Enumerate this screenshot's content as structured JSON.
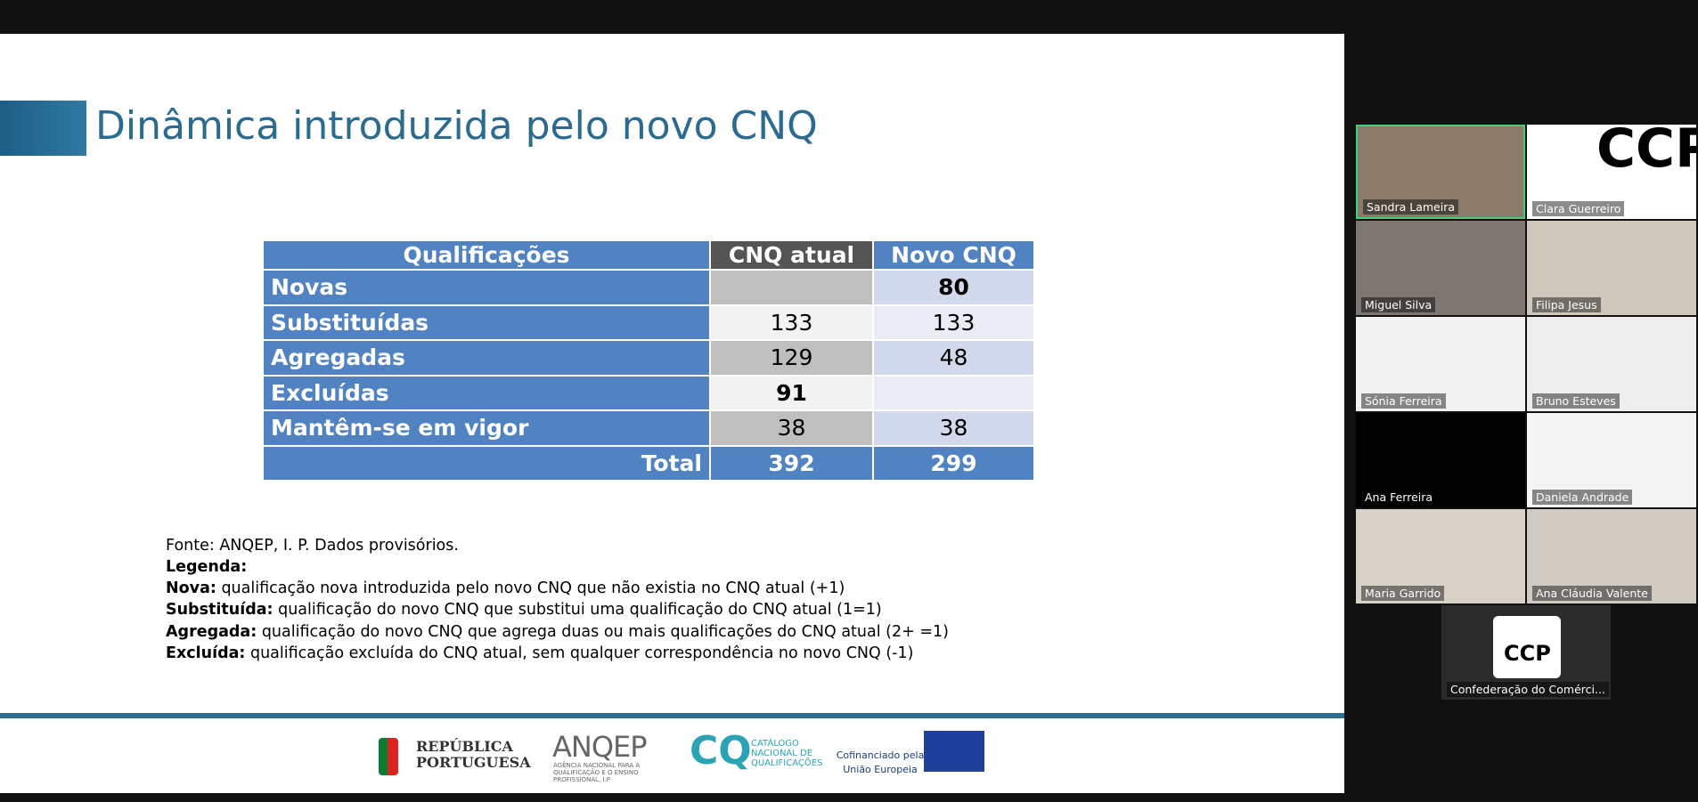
{
  "slide": {
    "title": "Dinâmica introduzida pelo novo CNQ",
    "table": {
      "header": [
        "Qualificações",
        "CNQ atual",
        "Novo CNQ"
      ],
      "rows": [
        [
          "Novas",
          null,
          80
        ],
        [
          "Substituídas",
          133,
          133
        ],
        [
          "Agregadas",
          129,
          48
        ],
        [
          "Excluídas",
          91,
          null
        ],
        [
          "Mantêm-se em vigor",
          38,
          38
        ],
        [
          "Total",
          392,
          299
        ]
      ]
    },
    "source": "Fonte: ANQEP, I. P. Dados provisórios.",
    "legend_title": "Legenda:",
    "legend": [
      {
        "term": "Nova:",
        "text": " qualificação nova introduzida pelo novo CNQ que não existia no CNQ atual (+1)"
      },
      {
        "term": "Substituída:",
        "text": " qualificação do novo CNQ que substitui uma qualificação do CNQ atual (1=1)"
      },
      {
        "term": "Agregada:",
        "text": " qualificação do novo CNQ que agrega duas ou mais qualificações do CNQ atual (2+ =1)"
      },
      {
        "term": "Excluída:",
        "text": " qualificação excluída do CNQ atual, sem qualquer correspondência no novo CNQ (-1)"
      }
    ],
    "logos": {
      "republica": "REPÚBLICA PORTUGUESA",
      "anqep": "ANQEP",
      "anqep_sub": "AGÊNCIA NACIONAL PARA A QUALIFICAÇÃO E O ENSINO PROFISSIONAL, I.P",
      "cq": "CQ",
      "cq_sub": "CATÁLOGO NACIONAL DE QUALIFICAÇÕES",
      "eu": "Cofinanciado pela União Europeia"
    }
  },
  "participants": [
    "Sandra Lameira",
    "Clara Guerreiro",
    "Miguel Silva",
    "Filipa Jesus",
    "Sónia Ferreira",
    "Bruno Esteves",
    "Ana Ferreira",
    "Daniela Andrade",
    "Maria Garrido",
    "Ana Cláudia Valente",
    "Confederação do Comérci..."
  ],
  "ccp_logo": "CCP"
}
